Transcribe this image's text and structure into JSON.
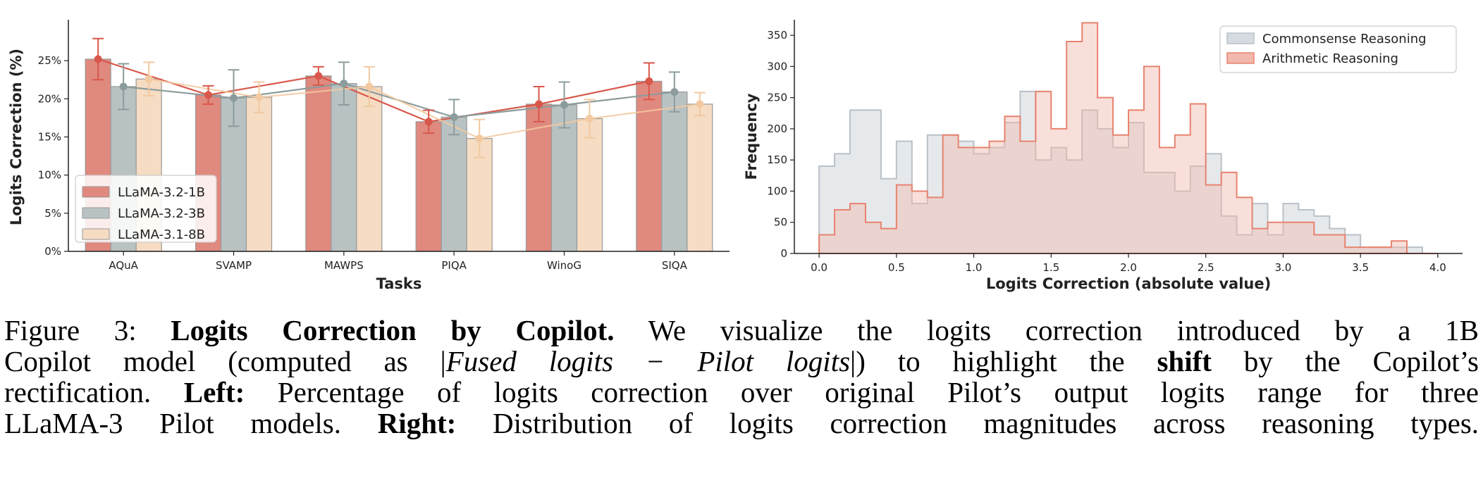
{
  "colors": {
    "llama_1b": "#e0897f",
    "llama_1b_dark": "#d9574a",
    "llama_3b": "#b8c2c2",
    "llama_3b_dark": "#8c9c9c",
    "llama_8b": "#f5dcc3",
    "llama_8b_dark": "#f2c9a0",
    "commonsense": "#d5dbe0",
    "arithmetic": "#f2b7ad"
  },
  "chart_data": [
    {
      "type": "bar",
      "xlabel": "Tasks",
      "ylabel": "Logits Correction (%)",
      "ylim": [
        0,
        30
      ],
      "yticks": [
        0,
        5,
        10,
        15,
        20,
        25
      ],
      "ytick_labels": [
        "0%",
        "5%",
        "10%",
        "15%",
        "20%",
        "25%"
      ],
      "categories": [
        "AQuA",
        "SVAMP",
        "MAWPS",
        "PIQA",
        "WinoG",
        "SIQA"
      ],
      "error_bars": true,
      "trend_lines": true,
      "legend_position": "lower-left",
      "series": [
        {
          "name": "LLaMA-3.2-1B",
          "values": [
            25.2,
            20.5,
            23.0,
            17.0,
            19.3,
            22.3
          ],
          "errors": [
            2.7,
            1.2,
            1.2,
            1.5,
            2.3,
            2.4
          ]
        },
        {
          "name": "LLaMA-3.2-3B",
          "values": [
            21.6,
            20.1,
            22.0,
            17.6,
            19.2,
            20.9
          ],
          "errors": [
            3.0,
            3.7,
            2.8,
            2.3,
            3.0,
            2.6
          ]
        },
        {
          "name": "LLaMA-3.1-8B",
          "values": [
            22.6,
            20.2,
            21.6,
            14.8,
            17.4,
            19.3
          ],
          "errors": [
            2.2,
            2.0,
            2.6,
            2.5,
            2.5,
            1.5
          ]
        }
      ]
    },
    {
      "type": "area",
      "histogram": true,
      "xlabel": "Logits Correction (absolute value)",
      "ylabel": "Frequency",
      "xlim": [
        -0.16,
        4.16
      ],
      "ylim": [
        0,
        375
      ],
      "xticks": [
        0.0,
        0.5,
        1.0,
        1.5,
        2.0,
        2.5,
        3.0,
        3.5,
        4.0
      ],
      "xtick_labels": [
        "0.0",
        "0.5",
        "1.0",
        "1.5",
        "2.0",
        "2.5",
        "3.0",
        "3.5",
        "4.0"
      ],
      "yticks": [
        0,
        50,
        100,
        150,
        200,
        250,
        300,
        350
      ],
      "legend_position": "top-right",
      "bin_start": 0.0,
      "bin_width": 0.1,
      "series": [
        {
          "name": "Commonsense Reasoning",
          "values": [
            140,
            160,
            230,
            230,
            120,
            180,
            80,
            190,
            190,
            180,
            160,
            170,
            210,
            260,
            150,
            170,
            150,
            230,
            200,
            170,
            210,
            130,
            130,
            100,
            140,
            160,
            60,
            30,
            80,
            30,
            80,
            70,
            60,
            40,
            30,
            10,
            10,
            10,
            10,
            0
          ]
        },
        {
          "name": "Arithmetic Reasoning",
          "values": [
            30,
            70,
            80,
            50,
            40,
            110,
            100,
            90,
            190,
            170,
            170,
            180,
            220,
            180,
            260,
            200,
            340,
            370,
            250,
            190,
            230,
            300,
            170,
            190,
            240,
            110,
            130,
            90,
            40,
            50,
            50,
            50,
            30,
            30,
            10,
            10,
            10,
            20,
            0,
            0
          ]
        }
      ]
    }
  ],
  "caption": {
    "label": "Figure 3:",
    "title": "Logits Correction by Copilot.",
    "line1_rest": "We visualize the logits correction introduced by a 1B",
    "line2_a": "Copilot model (computed as |",
    "line2_math": "Fused logits − Pilot logits",
    "line2_b": "|) to highlight the",
    "line2_bold": "shift",
    "line2_c": "by the Copilot’s",
    "line3_a": "rectification.",
    "line3_bold": "Left:",
    "line3_c": "Percentage of logits correction over original Pilot’s output logits range for three",
    "line4_a": "LLaMA-3 Pilot models.",
    "line4_bold": "Right:",
    "line4_c": "Distribution of logits correction magnitudes across reasoning types."
  }
}
